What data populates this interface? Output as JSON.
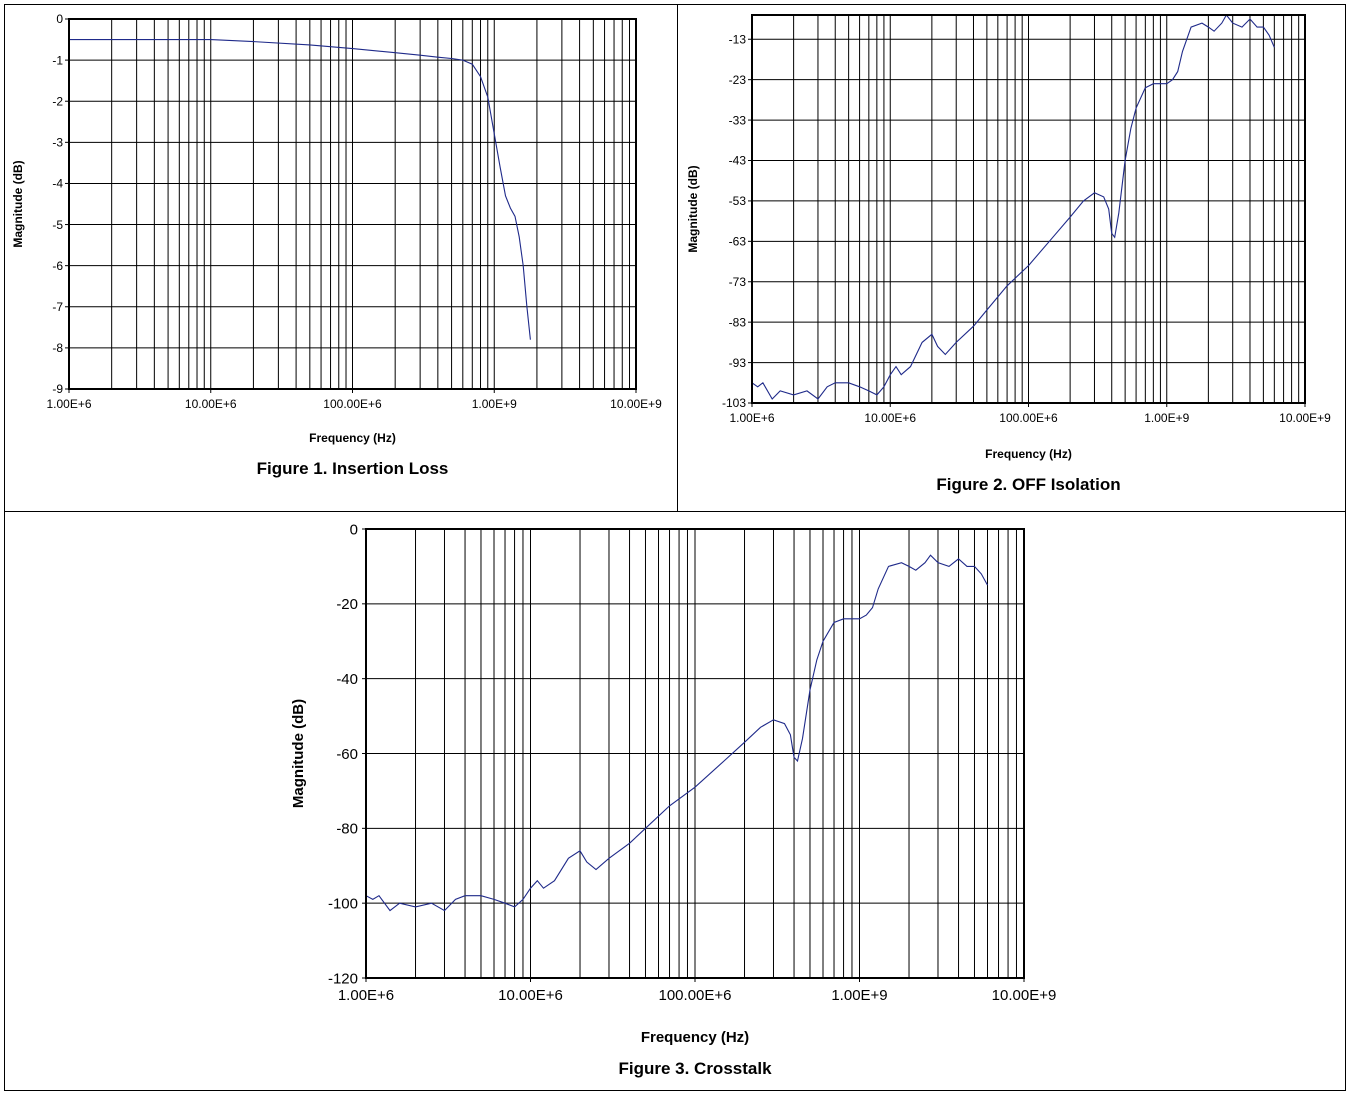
{
  "chart_data": [
    {
      "id": "insertion",
      "type": "line",
      "caption": "Figure 1. Insertion Loss",
      "xlabel": "Frequency (Hz)",
      "ylabel": "Magnitude (dB)",
      "xscale": "log",
      "xlim": [
        1000000,
        10000000000
      ],
      "ylim": [
        -9,
        0
      ],
      "xticks": [
        {
          "v": 1000000,
          "label": "1.00E+6"
        },
        {
          "v": 10000000,
          "label": "10.00E+6"
        },
        {
          "v": 100000000,
          "label": "100.00E+6"
        },
        {
          "v": 1000000000,
          "label": "1.00E+9"
        },
        {
          "v": 10000000000,
          "label": "10.00E+9"
        }
      ],
      "yticks": [
        {
          "v": 0,
          "label": "0"
        },
        {
          "v": -1,
          "label": "-1"
        },
        {
          "v": -2,
          "label": "-2"
        },
        {
          "v": -3,
          "label": "-3"
        },
        {
          "v": -4,
          "label": "-4"
        },
        {
          "v": -5,
          "label": "-5"
        },
        {
          "v": -6,
          "label": "-6"
        },
        {
          "v": -7,
          "label": "-7"
        },
        {
          "v": -8,
          "label": "-8"
        },
        {
          "v": -9,
          "label": "-9"
        }
      ],
      "grid": true,
      "series": [
        {
          "color": "#1f2a8a",
          "x": [
            1000000,
            2000000,
            5000000,
            10000000,
            20000000,
            50000000,
            100000000,
            200000000,
            300000000,
            400000000,
            500000000,
            600000000,
            700000000,
            800000000,
            900000000,
            1000000000,
            1100000000,
            1200000000,
            1300000000,
            1400000000,
            1500000000,
            1600000000,
            1700000000,
            1800000000
          ],
          "y": [
            -0.5,
            -0.5,
            -0.5,
            -0.5,
            -0.55,
            -0.63,
            -0.72,
            -0.82,
            -0.88,
            -0.93,
            -0.96,
            -1.0,
            -1.1,
            -1.4,
            -1.9,
            -2.8,
            -3.6,
            -4.3,
            -4.6,
            -4.8,
            -5.3,
            -6.0,
            -7.0,
            -7.8
          ]
        }
      ]
    },
    {
      "id": "isolation",
      "type": "line",
      "caption": "Figure 2. OFF Isolation",
      "xlabel": "Frequency (Hz)",
      "ylabel": "Magnitude (dB)",
      "xscale": "log",
      "xlim": [
        1000000,
        10000000000
      ],
      "ylim": [
        -103,
        -7
      ],
      "xticks": [
        {
          "v": 1000000,
          "label": "1.00E+6"
        },
        {
          "v": 10000000,
          "label": "10.00E+6"
        },
        {
          "v": 100000000,
          "label": "100.00E+6"
        },
        {
          "v": 1000000000,
          "label": "1.00E+9"
        },
        {
          "v": 10000000000,
          "label": "10.00E+9"
        }
      ],
      "yticks": [
        {
          "v": -13,
          "label": "-13"
        },
        {
          "v": -23,
          "label": "-23"
        },
        {
          "v": -33,
          "label": "-33"
        },
        {
          "v": -43,
          "label": "-43"
        },
        {
          "v": -53,
          "label": "-53"
        },
        {
          "v": -63,
          "label": "-63"
        },
        {
          "v": -73,
          "label": "-73"
        },
        {
          "v": -83,
          "label": "-83"
        },
        {
          "v": -93,
          "label": "-93"
        },
        {
          "v": -103,
          "label": "-103"
        }
      ],
      "grid": true,
      "series": [
        {
          "color": "#1f2a8a",
          "x": [
            1000000,
            1100000,
            1200000,
            1400000,
            1600000,
            2000000,
            2500000,
            3000000,
            3500000,
            4000000,
            5000000,
            6000000,
            7000000,
            8000000,
            9000000,
            10000000,
            11000000,
            12000000,
            14000000,
            17000000,
            20000000,
            22000000,
            25000000,
            30000000,
            40000000,
            50000000,
            70000000,
            100000000,
            150000000,
            200000000,
            250000000,
            300000000,
            350000000,
            380000000,
            400000000,
            420000000,
            450000000,
            500000000,
            550000000,
            600000000,
            700000000,
            800000000,
            1000000000,
            1100000000,
            1200000000,
            1300000000,
            1500000000,
            1800000000,
            2000000000,
            2200000000,
            2500000000,
            2700000000,
            3000000000,
            3500000000,
            4000000000,
            4500000000,
            5000000000,
            5500000000,
            6000000000
          ],
          "y": [
            -98,
            -99,
            -98,
            -102,
            -100,
            -101,
            -100,
            -102,
            -99,
            -98,
            -98,
            -99,
            -100,
            -101,
            -99,
            -96,
            -94,
            -96,
            -94,
            -88,
            -86,
            -89,
            -91,
            -88,
            -84,
            -80,
            -74,
            -69,
            -62,
            -57,
            -53,
            -51,
            -52,
            -55,
            -61,
            -62,
            -56,
            -43,
            -35,
            -30,
            -25,
            -24,
            -24,
            -23,
            -21,
            -16,
            -10,
            -9,
            -10,
            -11,
            -9,
            -7,
            -9,
            -10,
            -8,
            -10,
            -10,
            -12,
            -15
          ]
        }
      ]
    },
    {
      "id": "crosstalk",
      "type": "line",
      "caption": "Figure 3. Crosstalk",
      "xlabel": "Frequency (Hz)",
      "ylabel": "Magnitude (dB)",
      "xscale": "log",
      "xlim": [
        1000000,
        10000000000
      ],
      "ylim": [
        -120,
        0
      ],
      "xticks": [
        {
          "v": 1000000,
          "label": "1.00E+6"
        },
        {
          "v": 10000000,
          "label": "10.00E+6"
        },
        {
          "v": 100000000,
          "label": "100.00E+6"
        },
        {
          "v": 1000000000,
          "label": "1.00E+9"
        },
        {
          "v": 10000000000,
          "label": "10.00E+9"
        }
      ],
      "yticks": [
        {
          "v": 0,
          "label": "0"
        },
        {
          "v": -20,
          "label": "-20"
        },
        {
          "v": -40,
          "label": "-40"
        },
        {
          "v": -60,
          "label": "-60"
        },
        {
          "v": -80,
          "label": "-80"
        },
        {
          "v": -100,
          "label": "-100"
        },
        {
          "v": -120,
          "label": "-120"
        }
      ],
      "grid": true,
      "series": [
        {
          "color": "#1f2a8a",
          "x": [
            1000000,
            1100000,
            1200000,
            1400000,
            1600000,
            2000000,
            2500000,
            3000000,
            3500000,
            4000000,
            5000000,
            6000000,
            7000000,
            8000000,
            9000000,
            10000000,
            11000000,
            12000000,
            14000000,
            17000000,
            20000000,
            22000000,
            25000000,
            30000000,
            40000000,
            50000000,
            70000000,
            100000000,
            150000000,
            200000000,
            250000000,
            300000000,
            350000000,
            380000000,
            400000000,
            420000000,
            450000000,
            500000000,
            550000000,
            600000000,
            700000000,
            800000000,
            1000000000,
            1100000000,
            1200000000,
            1300000000,
            1500000000,
            1800000000,
            2000000000,
            2200000000,
            2500000000,
            2700000000,
            3000000000,
            3500000000,
            4000000000,
            4500000000,
            5000000000,
            5500000000,
            6000000000
          ],
          "y": [
            -98,
            -99,
            -98,
            -102,
            -100,
            -101,
            -100,
            -102,
            -99,
            -98,
            -98,
            -99,
            -100,
            -101,
            -99,
            -96,
            -94,
            -96,
            -94,
            -88,
            -86,
            -89,
            -91,
            -88,
            -84,
            -80,
            -74,
            -69,
            -62,
            -57,
            -53,
            -51,
            -52,
            -55,
            -61,
            -62,
            -56,
            -43,
            -35,
            -30,
            -25,
            -24,
            -24,
            -23,
            -21,
            -16,
            -10,
            -9,
            -10,
            -11,
            -9,
            -7,
            -9,
            -10,
            -8,
            -10,
            -10,
            -12,
            -15
          ]
        }
      ]
    }
  ]
}
